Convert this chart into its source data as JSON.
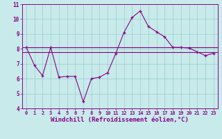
{
  "xlabel": "Windchill (Refroidissement éolien,°C)",
  "xlim": [
    -0.5,
    23.5
  ],
  "ylim": [
    4,
    11
  ],
  "yticks": [
    4,
    5,
    6,
    7,
    8,
    9,
    10,
    11
  ],
  "xticks": [
    0,
    1,
    2,
    3,
    4,
    5,
    6,
    7,
    8,
    9,
    10,
    11,
    12,
    13,
    14,
    15,
    16,
    17,
    18,
    19,
    20,
    21,
    22,
    23
  ],
  "bg_color": "#c8eaea",
  "line_color": "#880088",
  "grid_color": "#99cccc",
  "line1_y": 8.1,
  "line2_y": 7.8,
  "line3_x": [
    0,
    1,
    2,
    3,
    4,
    5,
    6,
    7,
    8,
    9,
    10,
    11,
    12,
    13,
    14,
    15,
    16,
    17,
    18,
    19,
    20,
    21,
    22,
    23
  ],
  "line3_y": [
    8.1,
    6.9,
    6.2,
    8.1,
    6.1,
    6.15,
    6.15,
    4.45,
    6.0,
    6.1,
    6.4,
    7.7,
    9.1,
    10.1,
    10.55,
    9.5,
    9.15,
    8.8,
    8.1,
    8.1,
    8.05,
    7.8,
    7.55,
    7.7
  ],
  "tick_fontsize": 5.5,
  "xlabel_fontsize": 6.5,
  "spine_color": "#880088"
}
